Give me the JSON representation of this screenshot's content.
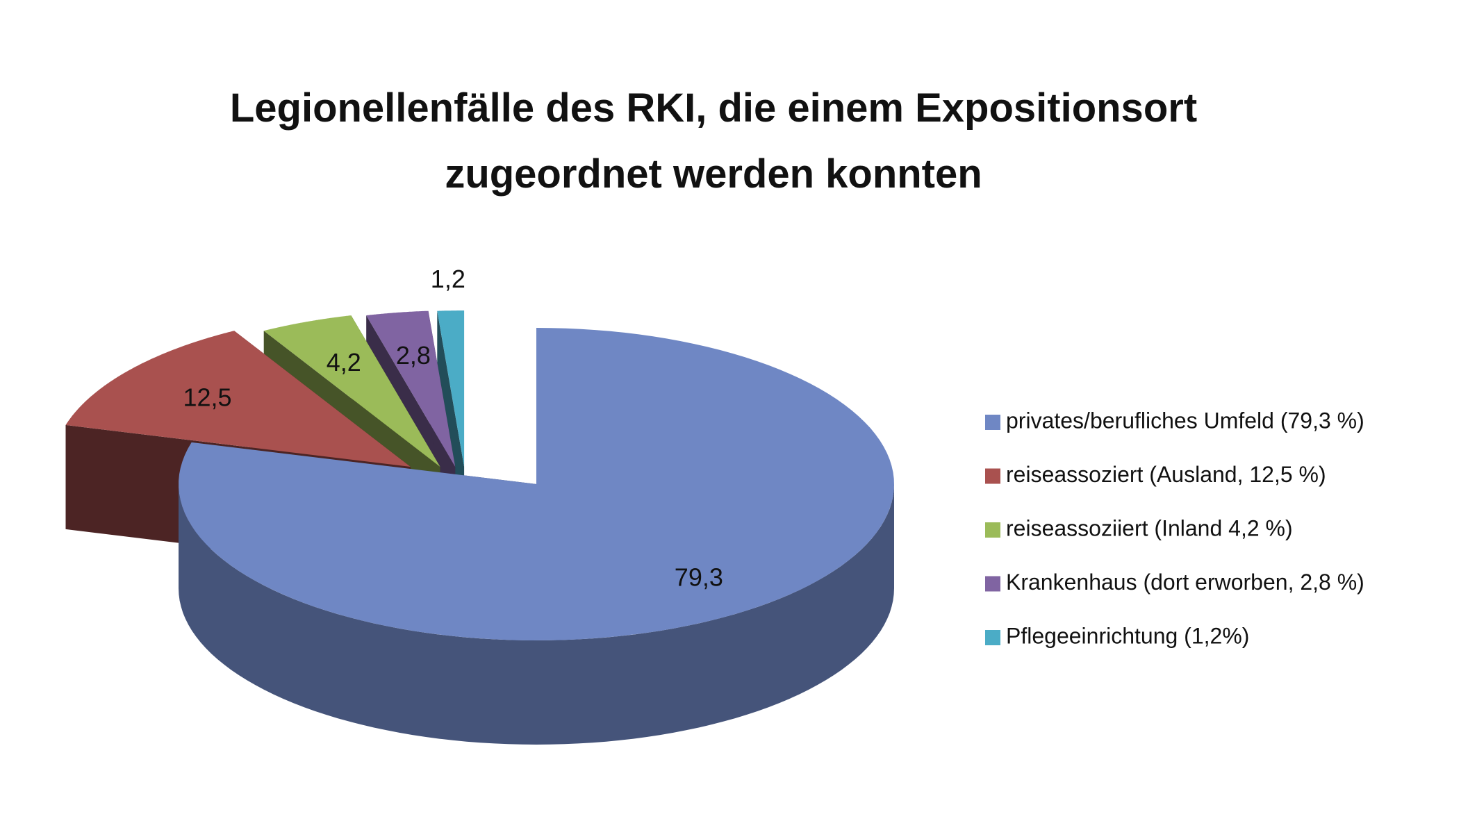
{
  "chart_data": {
    "type": "pie",
    "title": [
      "Legionellenfälle des RKI, die einem Expositionsort",
      "zugeordnet werden konnten"
    ],
    "categories": [
      "privates/berufliches Umfeld (79,3 %)",
      "reiseassoziert (Ausland, 12,5 %)",
      "reiseassoziiert (Inland 4,2 %)",
      "Krankenhaus (dort erworben, 2,8 %)",
      "Pflegeeinrichtung (1,2%)"
    ],
    "values": [
      79.3,
      12.5,
      4.2,
      2.8,
      1.2
    ],
    "value_labels": [
      "79,3",
      "12,5",
      "4,2",
      "2,8",
      "1,2"
    ],
    "colors": [
      "#6f87c4",
      "#a9514f",
      "#9bbb59",
      "#8064a2",
      "#4bacc6"
    ],
    "legend": "right"
  }
}
